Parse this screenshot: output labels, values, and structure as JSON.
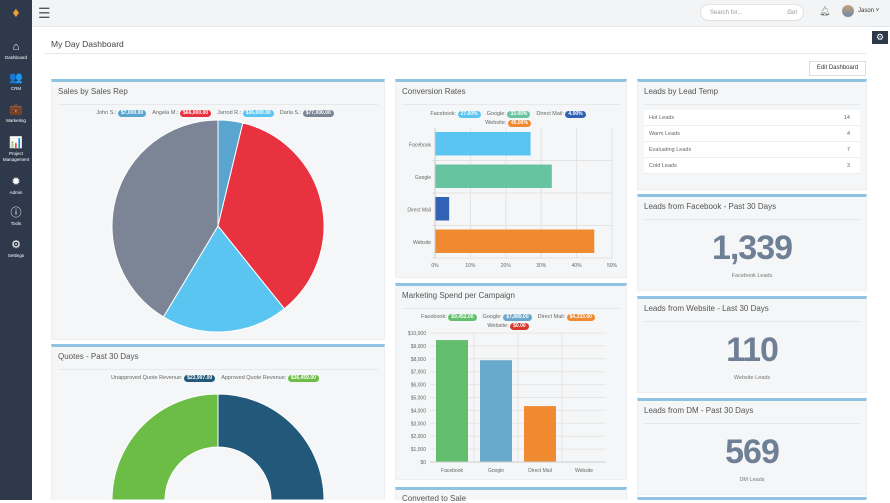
{
  "sidebar": {
    "items": [
      {
        "label": "Dashboard",
        "icon": "home-icon",
        "glyph": "⌂"
      },
      {
        "label": "CRM",
        "icon": "users-icon",
        "glyph": "👥"
      },
      {
        "label": "Marketing",
        "icon": "briefcase-icon",
        "glyph": "💼"
      },
      {
        "label": "Project Management",
        "icon": "bar-chart-icon",
        "glyph": "📊"
      },
      {
        "label": "Admin",
        "icon": "gear-icon",
        "glyph": "✹"
      },
      {
        "label": "Tools",
        "icon": "info-icon",
        "glyph": "ⓘ"
      },
      {
        "label": "Settings",
        "icon": "cog-icon",
        "glyph": "⚙"
      }
    ]
  },
  "topbar": {
    "search_placeholder": "Search for...",
    "go": "Go!",
    "user": "Jason ˅"
  },
  "page": {
    "title": "My Day Dashboard",
    "edit_button": "Edit Dashboard"
  },
  "sales": {
    "title": "Sales by Sales Rep"
  },
  "quotes": {
    "title": "Quotes - Past 30 Days"
  },
  "conversion": {
    "title": "Conversion Rates"
  },
  "marketing": {
    "title": "Marketing Spend per Campaign"
  },
  "converted": {
    "title": "Converted to Sale"
  },
  "leads_temp": {
    "title": "Leads by Lead Temp",
    "rows": [
      {
        "label": "Hot Leads",
        "value": "14"
      },
      {
        "label": "Warm Leads",
        "value": "4"
      },
      {
        "label": "Evaluating Leads",
        "value": "7"
      },
      {
        "label": "Cold Leads",
        "value": "3"
      }
    ]
  },
  "stats": [
    {
      "title": "Leads from Facebook - Past 30 Days",
      "value": "1,339",
      "label": "Facebook Leads"
    },
    {
      "title": "Leads from Website - Last 30 Days",
      "value": "110",
      "label": "Website Leads"
    },
    {
      "title": "Leads from DM - Past 30 Days",
      "value": "569",
      "label": "DM Leads"
    }
  ],
  "chart_data": [
    {
      "type": "pie",
      "categories": [
        "John S.",
        "Angela M.",
        "Jarrod R.",
        "Darla S."
      ],
      "labels": [
        "$7,000.00",
        "$66,000.00",
        "$36,000.00",
        "$77,000.00"
      ],
      "values": [
        7000,
        66000,
        36000,
        77000
      ],
      "colors": [
        "#5aa5cf",
        "#e8323f",
        "#5bc5f2",
        "#7b8596"
      ]
    },
    {
      "type": "pie",
      "donut": true,
      "categories": [
        "Unapproved Quote Revenue",
        "Approved Quote Revenue"
      ],
      "labels": [
        "$23,997.00",
        "$36,459.00"
      ],
      "values": [
        23997,
        36459
      ],
      "colors": [
        "#22597a",
        "#6cbd45"
      ]
    },
    {
      "type": "bar",
      "orientation": "horizontal",
      "categories": [
        "Facebook",
        "Google",
        "Direct Mail",
        "Website"
      ],
      "labels": [
        "27.00%",
        "33.00%",
        "4.00%",
        "45.00%"
      ],
      "values": [
        27,
        33,
        4,
        45
      ],
      "colors": [
        "#5bc5f2",
        "#67c4a1",
        "#3162b4",
        "#ef8a30"
      ],
      "xlim": [
        0,
        50
      ],
      "ticks": [
        "0%",
        "10%",
        "20%",
        "30%",
        "40%",
        "50%"
      ],
      "grid": true
    },
    {
      "type": "bar",
      "categories": [
        "Facebook",
        "Google",
        "Direct Mail",
        "Website"
      ],
      "labels": [
        "$9,452.00",
        "$7,889.00",
        "$4,333.00",
        "$0.00"
      ],
      "values": [
        9452,
        7889,
        4333,
        0
      ],
      "colors": [
        "#63bf6e",
        "#68a9cc",
        "#ef8a30",
        "#d63a2c"
      ],
      "ylim": [
        0,
        10000
      ],
      "ticks": [
        "$0",
        "$1,000",
        "$2,000",
        "$3,000",
        "$4,000",
        "$5,000",
        "$6,000",
        "$7,000",
        "$8,000",
        "$9,000",
        "$10,000"
      ],
      "grid": true
    }
  ]
}
